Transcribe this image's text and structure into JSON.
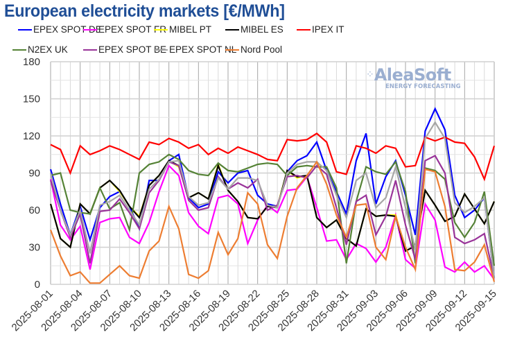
{
  "chart_data": {
    "type": "line",
    "title": "European electricity markets [€/MWh]",
    "xlabel": "",
    "ylabel": "",
    "ylim": [
      0,
      180
    ],
    "yticks": [
      0,
      30,
      60,
      90,
      120,
      150,
      180
    ],
    "grid": true,
    "legend_position": "top",
    "x": [
      "2025-08-01",
      "2025-08-02",
      "2025-08-03",
      "2025-08-04",
      "2025-08-05",
      "2025-08-06",
      "2025-08-07",
      "2025-08-08",
      "2025-08-09",
      "2025-08-10",
      "2025-08-11",
      "2025-08-12",
      "2025-08-13",
      "2025-08-14",
      "2025-08-15",
      "2025-08-16",
      "2025-08-17",
      "2025-08-18",
      "2025-08-19",
      "2025-08-20",
      "2025-08-21",
      "2025-08-22",
      "2025-08-23",
      "2025-08-24",
      "2025-08-25",
      "2025-08-26",
      "2025-08-27",
      "2025-08-28",
      "2025-08-29",
      "2025-08-30",
      "2025-08-31",
      "2025-09-01",
      "2025-09-02",
      "2025-09-03",
      "2025-09-04",
      "2025-09-05",
      "2025-09-06",
      "2025-09-07",
      "2025-09-08",
      "2025-09-09",
      "2025-09-10",
      "2025-09-11",
      "2025-09-12",
      "2025-09-13",
      "2025-09-14",
      "2025-09-15"
    ],
    "xtick_labels": [
      "2025-08-01",
      "2025-08-04",
      "2025-08-07",
      "2025-08-10",
      "2025-08-13",
      "2025-08-16",
      "2025-08-19",
      "2025-08-22",
      "2025-08-25",
      "2025-08-28",
      "2025-08-31",
      "2025-09-03",
      "2025-09-06",
      "2025-09-09",
      "2025-09-12",
      "2025-09-15"
    ],
    "series": [
      {
        "name": "EPEX SPOT DE",
        "color": "#0000ff",
        "values": [
          93,
          65,
          40,
          63,
          36,
          62,
          71,
          75,
          63,
          45,
          84,
          84,
          100,
          105,
          70,
          62,
          65,
          91,
          82,
          90,
          92,
          72,
          65,
          63,
          91,
          100,
          104,
          115,
          92,
          75,
          57,
          100,
          122,
          65,
          87,
          100,
          72,
          40,
          124,
          142,
          125,
          72,
          54,
          60,
          70,
          5
        ]
      },
      {
        "name": "EPEX SPOT FR",
        "color": "#ff00ff",
        "values": [
          85,
          48,
          36,
          47,
          12,
          50,
          53,
          54,
          38,
          33,
          50,
          75,
          96,
          88,
          58,
          47,
          41,
          70,
          72,
          65,
          33,
          52,
          64,
          58,
          76,
          77,
          87,
          62,
          35,
          36,
          20,
          33,
          29,
          18,
          30,
          56,
          20,
          13,
          65,
          52,
          14,
          10,
          18,
          10,
          15,
          4
        ]
      },
      {
        "name": "MIBEL PT",
        "color": "#ffff00",
        "values": [
          65,
          37,
          30,
          65,
          57,
          78,
          84,
          75,
          63,
          55,
          80,
          88,
          100,
          95,
          70,
          74,
          69,
          97,
          76,
          67,
          54,
          53,
          63,
          63,
          92,
          86,
          88,
          54,
          46,
          52,
          37,
          31,
          61,
          55,
          56,
          56,
          27,
          31,
          76,
          64,
          51,
          55,
          73,
          61,
          49,
          67
        ]
      },
      {
        "name": "MIBEL ES",
        "color": "#000000",
        "values": [
          65,
          37,
          30,
          65,
          57,
          78,
          84,
          76,
          63,
          54,
          80,
          88,
          100,
          96,
          70,
          74,
          69,
          96,
          76,
          67,
          54,
          53,
          63,
          62,
          92,
          87,
          88,
          54,
          46,
          52,
          37,
          31,
          61,
          55,
          56,
          55,
          27,
          31,
          76,
          64,
          51,
          55,
          73,
          61,
          49,
          67
        ]
      },
      {
        "name": "IPEX IT",
        "color": "#ff0000",
        "values": [
          113,
          109,
          90,
          112,
          105,
          108,
          112,
          109,
          105,
          101,
          115,
          113,
          118,
          115,
          110,
          113,
          105,
          110,
          106,
          111,
          108,
          105,
          101,
          100,
          117,
          116,
          117,
          122,
          115,
          91,
          89,
          112,
          110,
          106,
          112,
          110,
          95,
          96,
          119,
          116,
          119,
          115,
          114,
          103,
          85,
          112
        ]
      },
      {
        "name": "N2EX UK",
        "color": "#548235",
        "values": [
          88,
          90,
          60,
          58,
          57,
          78,
          61,
          66,
          44,
          90,
          97,
          99,
          105,
          101,
          92,
          89,
          88,
          98,
          92,
          91,
          94,
          97,
          98,
          97,
          88,
          95,
          96,
          95,
          95,
          78,
          17,
          67,
          95,
          91,
          89,
          99,
          75,
          17,
          94,
          92,
          85,
          50,
          38,
          50,
          75,
          15
        ]
      },
      {
        "name": "EPEX SPOT BE",
        "color": "#993399",
        "values": [
          84,
          60,
          38,
          57,
          17,
          59,
          60,
          69,
          58,
          45,
          74,
          84,
          99,
          96,
          68,
          60,
          62,
          87,
          77,
          82,
          78,
          85,
          60,
          64,
          87,
          88,
          86,
          96,
          89,
          62,
          32,
          67,
          72,
          40,
          55,
          84,
          48,
          20,
          100,
          104,
          90,
          38,
          33,
          36,
          41,
          5
        ]
      },
      {
        "name": "EPEX SPOT NL",
        "color": "#a6a6a6",
        "values": [
          90,
          60,
          40,
          60,
          25,
          64,
          67,
          72,
          60,
          48,
          77,
          85,
          99,
          100,
          71,
          64,
          66,
          86,
          77,
          86,
          86,
          84,
          64,
          62,
          90,
          97,
          99,
          99,
          92,
          72,
          54,
          84,
          90,
          62,
          70,
          95,
          62,
          28,
          118,
          131,
          118,
          66,
          58,
          63,
          70,
          5
        ]
      },
      {
        "name": "Nord Pool",
        "color": "#ed7d31",
        "values": [
          44,
          23,
          7,
          10,
          1,
          1,
          8,
          15,
          7,
          5,
          27,
          35,
          63,
          45,
          8,
          5,
          11,
          42,
          24,
          37,
          74,
          65,
          32,
          21,
          55,
          78,
          88,
          99,
          81,
          56,
          38,
          64,
          65,
          30,
          20,
          55,
          30,
          12,
          93,
          91,
          63,
          12,
          11,
          18,
          32,
          2
        ]
      }
    ]
  },
  "legend": {
    "row1": [
      "EPEX SPOT DE",
      "EPEX SPOT FR",
      "MIBEL PT",
      "MIBEL ES",
      "IPEX IT"
    ],
    "row2": [
      "N2EX UK",
      "EPEX SPOT BE",
      "EPEX SPOT NL",
      "Nord Pool"
    ]
  },
  "watermark": {
    "brand": "AleaSoft",
    "tagline": "ENERGY FORECASTING"
  }
}
